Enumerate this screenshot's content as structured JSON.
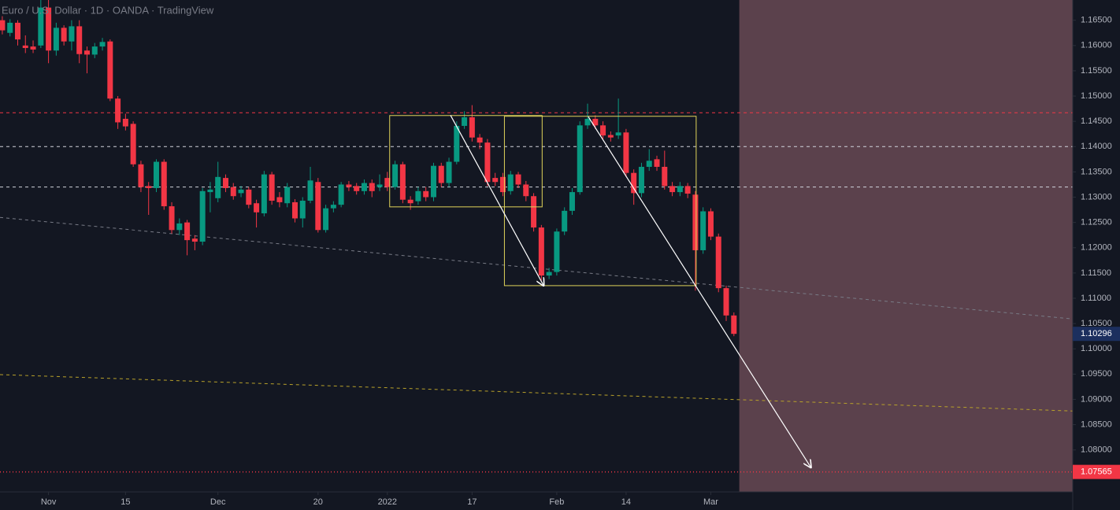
{
  "chart_data": {
    "type": "candlestick",
    "title": "Euro / U.S. Dollar · 1D · OANDA · TradingView",
    "open": [
      1.165,
      1.1625,
      1.1645,
      1.16,
      1.1598,
      1.16,
      1.1675,
      1.159,
      1.1635,
      1.1608,
      1.1638,
      1.159,
      1.1582,
      1.1598,
      1.1608,
      1.1495,
      1.1455,
      1.1445,
      1.1365,
      1.1322,
      1.1318,
      1.137,
      1.1282,
      1.1235,
      1.125,
      1.1218,
      1.1212,
      1.131,
      1.1298,
      1.1338,
      1.132,
      1.1308,
      1.1315,
      1.1288,
      1.1268,
      1.1345,
      1.13,
      1.1288,
      1.129,
      1.1258,
      1.1293,
      1.133,
      1.1235,
      1.1278,
      1.1285,
      1.1325,
      1.1322,
      1.1312,
      1.1328,
      1.132,
      1.1338,
      1.132,
      1.1365,
      1.1295,
      1.1292,
      1.1312,
      1.13,
      1.1362,
      1.1328,
      1.137,
      1.1441,
      1.1458,
      1.1418,
      1.1408,
      1.1338,
      1.134,
      1.1312,
      1.1345,
      1.1325,
      1.1302,
      1.124,
      1.1145,
      1.1152,
      1.1232,
      1.1273,
      1.131,
      1.1442,
      1.1455,
      1.1442,
      1.1423,
      1.1422,
      1.1428,
      1.1348,
      1.1308,
      1.136,
      1.1375,
      1.136,
      1.1322,
      1.131,
      1.1322,
      1.1305,
      1.1195,
      1.1272,
      1.1222,
      1.112,
      1.1066
    ],
    "high": [
      1.1658,
      1.1652,
      1.165,
      1.162,
      1.161,
      1.169,
      1.169,
      1.1645,
      1.164,
      1.165,
      1.165,
      1.1598,
      1.1605,
      1.1615,
      1.1612,
      1.15,
      1.1465,
      1.145,
      1.1372,
      1.133,
      1.1375,
      1.1375,
      1.129,
      1.1258,
      1.1255,
      1.1225,
      1.1318,
      1.133,
      1.137,
      1.1345,
      1.1328,
      1.1322,
      1.132,
      1.1295,
      1.1352,
      1.135,
      1.131,
      1.1328,
      1.1296,
      1.13,
      1.136,
      1.1338,
      1.1285,
      1.1292,
      1.133,
      1.1332,
      1.1328,
      1.1335,
      1.1335,
      1.1345,
      1.135,
      1.1372,
      1.137,
      1.1302,
      1.132,
      1.132,
      1.1368,
      1.1368,
      1.1378,
      1.145,
      1.147,
      1.1482,
      1.1425,
      1.1415,
      1.1348,
      1.1348,
      1.1352,
      1.135,
      1.1332,
      1.1308,
      1.1245,
      1.116,
      1.1238,
      1.128,
      1.1318,
      1.145,
      1.1485,
      1.1462,
      1.145,
      1.143,
      1.1495,
      1.1435,
      1.1355,
      1.1368,
      1.1395,
      1.1382,
      1.1392,
      1.133,
      1.133,
      1.1328,
      1.1312,
      1.128,
      1.1278,
      1.1228,
      1.1125,
      1.1072
    ],
    "low": [
      1.1622,
      1.1618,
      1.16,
      1.1585,
      1.1585,
      1.1595,
      1.1565,
      1.158,
      1.16,
      1.159,
      1.1565,
      1.1545,
      1.1575,
      1.159,
      1.149,
      1.1435,
      1.1432,
      1.136,
      1.131,
      1.1265,
      1.131,
      1.1275,
      1.1228,
      1.1225,
      1.1185,
      1.1195,
      1.1205,
      1.127,
      1.129,
      1.131,
      1.1295,
      1.13,
      1.1278,
      1.124,
      1.1262,
      1.1285,
      1.128,
      1.128,
      1.125,
      1.124,
      1.1288,
      1.123,
      1.123,
      1.127,
      1.128,
      1.1312,
      1.1305,
      1.1305,
      1.13,
      1.1312,
      1.1312,
      1.1315,
      1.1288,
      1.1275,
      1.1285,
      1.1292,
      1.1292,
      1.132,
      1.132,
      1.1365,
      1.1435,
      1.141,
      1.1395,
      1.1322,
      1.1322,
      1.1302,
      1.1305,
      1.1318,
      1.1292,
      1.1232,
      1.1135,
      1.1138,
      1.1145,
      1.1225,
      1.1265,
      1.1305,
      1.1435,
      1.1435,
      1.1415,
      1.141,
      1.1415,
      1.134,
      1.1285,
      1.13,
      1.1352,
      1.1352,
      1.1315,
      1.1302,
      1.1302,
      1.1298,
      1.1115,
      1.1188,
      1.1215,
      1.1112,
      1.1055,
      1.1025
    ],
    "close": [
      1.163,
      1.1645,
      1.1612,
      1.1595,
      1.1592,
      1.1675,
      1.159,
      1.1635,
      1.1608,
      1.1638,
      1.1583,
      1.1582,
      1.1598,
      1.1607,
      1.1495,
      1.1448,
      1.144,
      1.1365,
      1.132,
      1.1318,
      1.137,
      1.1282,
      1.1235,
      1.1248,
      1.1215,
      1.1212,
      1.1312,
      1.1315,
      1.134,
      1.1318,
      1.1302,
      1.1315,
      1.1285,
      1.127,
      1.1345,
      1.1293,
      1.129,
      1.132,
      1.1258,
      1.1293,
      1.1333,
      1.1235,
      1.1278,
      1.1285,
      1.1325,
      1.132,
      1.1312,
      1.1328,
      1.1312,
      1.1325,
      1.132,
      1.1365,
      1.1295,
      1.1288,
      1.1312,
      1.13,
      1.1362,
      1.1328,
      1.137,
      1.1441,
      1.1458,
      1.1418,
      1.1408,
      1.133,
      1.133,
      1.131,
      1.1345,
      1.1325,
      1.1302,
      1.124,
      1.1145,
      1.1152,
      1.1232,
      1.1273,
      1.131,
      1.1442,
      1.1455,
      1.1442,
      1.1422,
      1.1418,
      1.1428,
      1.1348,
      1.1308,
      1.136,
      1.1372,
      1.136,
      1.1322,
      1.131,
      1.1322,
      1.1307,
      1.1195,
      1.1272,
      1.1222,
      1.112,
      1.1066,
      1.10296
    ],
    "up_color": "#089981",
    "down_color": "#f23645",
    "xlim": [
      -0.3,
      139
    ],
    "ylim": [
      1.0717,
      1.169
    ],
    "xticks": [
      {
        "value": 6,
        "label": "Nov"
      },
      {
        "value": 16,
        "label": "15"
      },
      {
        "value": 28,
        "label": "Dec"
      },
      {
        "value": 41,
        "label": "20"
      },
      {
        "value": 50,
        "label": "2022"
      },
      {
        "value": 61,
        "label": "17"
      },
      {
        "value": 72,
        "label": "Feb"
      },
      {
        "value": 81,
        "label": "14"
      },
      {
        "value": 92,
        "label": "Mar"
      }
    ],
    "yticks": [
      {
        "value": 1.165,
        "label": "1.16500"
      },
      {
        "value": 1.16,
        "label": "1.16000"
      },
      {
        "value": 1.155,
        "label": "1.15500"
      },
      {
        "value": 1.15,
        "label": "1.15000"
      },
      {
        "value": 1.145,
        "label": "1.14500"
      },
      {
        "value": 1.14,
        "label": "1.14000"
      },
      {
        "value": 1.135,
        "label": "1.13500"
      },
      {
        "value": 1.13,
        "label": "1.13000"
      },
      {
        "value": 1.125,
        "label": "1.12500"
      },
      {
        "value": 1.12,
        "label": "1.12000"
      },
      {
        "value": 1.115,
        "label": "1.11500"
      },
      {
        "value": 1.11,
        "label": "1.11000"
      },
      {
        "value": 1.105,
        "label": "1.10500"
      },
      {
        "value": 1.1,
        "label": "1.10000"
      },
      {
        "value": 1.095,
        "label": "1.09500"
      },
      {
        "value": 1.09,
        "label": "1.09000"
      },
      {
        "value": 1.085,
        "label": "1.08500"
      },
      {
        "value": 1.08,
        "label": "1.08000"
      }
    ],
    "last_price": 1.10296,
    "last_price_color": "#1c2f5e",
    "hlines": [
      {
        "value": 1.1467,
        "color": "#f23645",
        "style": "dashed"
      },
      {
        "value": 1.14,
        "color": "#d1d4dc",
        "style": "dashed"
      },
      {
        "value": 1.132,
        "color": "#d1d4dc",
        "style": "dashed"
      },
      {
        "value": 1.07565,
        "color": "#f23645",
        "style": "dotted",
        "labeled": true
      }
    ],
    "trendlines": [
      {
        "x": [
          -0.3,
          139
        ],
        "y": [
          1.126,
          1.1059
        ],
        "color": "#787b86",
        "style": "dashed"
      },
      {
        "x": [
          -0.3,
          139
        ],
        "y": [
          1.0949,
          1.0877
        ],
        "color": "#b8a12a",
        "style": "dashed"
      }
    ],
    "boxes": [
      {
        "x": [
          50.3,
          70.1
        ],
        "y": [
          1.12808,
          1.14615
        ]
      },
      {
        "x": [
          65.2,
          90.1
        ],
        "y": [
          1.1125,
          1.146
        ]
      }
    ],
    "box_color": "#e0d45a",
    "arrows": [
      {
        "x": [
          58.2,
          70.3
        ],
        "y": [
          1.1462,
          1.1125
        ]
      },
      {
        "x": [
          76.1,
          105.0
        ],
        "y": [
          1.1459,
          1.07653
        ]
      }
    ],
    "shade": {
      "x_start": 95.7,
      "color": "#5b414c"
    }
  }
}
